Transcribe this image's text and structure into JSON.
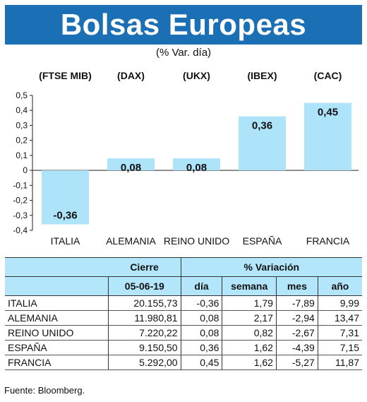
{
  "title": "Bolsas Europeas",
  "subtitle": "(% Var. día)",
  "chart_data": {
    "type": "bar",
    "index_labels": [
      "(FTSE MIB)",
      "(DAX)",
      "(UKX)",
      "(IBEX)",
      "(CAC)"
    ],
    "categories": [
      "ITALIA",
      "ALEMANIA",
      "REINO UNIDO",
      "ESPAÑA",
      "FRANCIA"
    ],
    "values": [
      -0.36,
      0.08,
      0.08,
      0.36,
      0.45
    ],
    "value_labels": [
      "-0,36",
      "0,08",
      "0,08",
      "0,36",
      "0,45"
    ],
    "y_ticks": [
      "0,5",
      "0,4",
      "0,3",
      "0,2",
      "0,1",
      "0",
      "-0,1",
      "-0,2",
      "-0,3",
      "-0,4"
    ],
    "ylim": [
      -0.4,
      0.5
    ],
    "bar_color": "#aee4fa",
    "grid": false
  },
  "table": {
    "header_cierre": "Cierre",
    "header_variacion": "% Variación",
    "date": "05-06-19",
    "col_dia": "día",
    "col_semana": "semana",
    "col_mes": "mes",
    "col_ano": "año",
    "rows": [
      {
        "country": "ITALIA",
        "cierre": "20.155,73",
        "dia": "-0,36",
        "semana": "1,79",
        "mes": "-7,89",
        "ano": "9,99"
      },
      {
        "country": "ALEMANIA",
        "cierre": "11.980,81",
        "dia": "0,08",
        "semana": "2,17",
        "mes": "-2,94",
        "ano": "13,47"
      },
      {
        "country": "REINO UNIDO",
        "cierre": "7.220,22",
        "dia": "0,08",
        "semana": "0,82",
        "mes": "-2,67",
        "ano": "7,31"
      },
      {
        "country": "ESPAÑA",
        "cierre": "9.150,50",
        "dia": "0,36",
        "semana": "1,62",
        "mes": "-4,39",
        "ano": "7,15"
      },
      {
        "country": "FRANCIA",
        "cierre": "5.292,00",
        "dia": "0,45",
        "semana": "1,62",
        "mes": "-5,27",
        "ano": "11,87"
      }
    ],
    "header_color": "#b3e5fb"
  },
  "source": "Fuente: Bloomberg.",
  "colors": {
    "title_bar": "#1a6fb5"
  }
}
